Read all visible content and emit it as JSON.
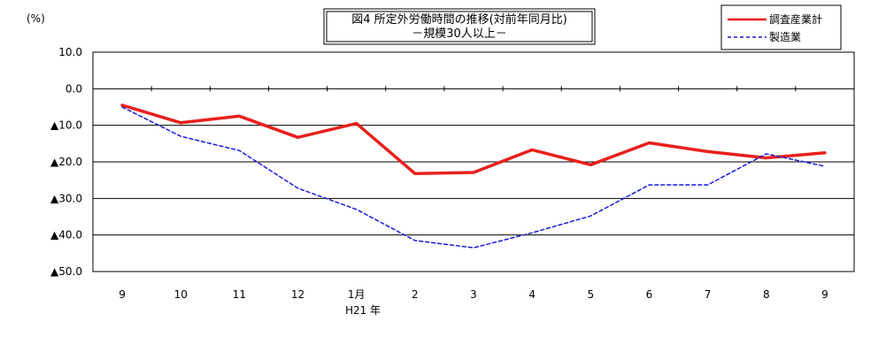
{
  "chart_data": {
    "type": "line",
    "title": "図4  所定外労働時間の推移(対前年同月比)",
    "subtitle": "－規模30人以上－",
    "ylabel": "(%)",
    "x_categories": [
      "9",
      "10",
      "11",
      "12",
      "1月",
      "2",
      "3",
      "4",
      "5",
      "6",
      "7",
      "8",
      "9"
    ],
    "year_note": "H21 年",
    "ylim": [
      -50,
      10
    ],
    "y_ticks": [
      {
        "value": 10,
        "label": "10.0"
      },
      {
        "value": 0,
        "label": "0.0"
      },
      {
        "value": -10,
        "label": "▲10.0"
      },
      {
        "value": -20,
        "label": "▲20.0"
      },
      {
        "value": -30,
        "label": "▲30.0"
      },
      {
        "value": -40,
        "label": "▲40.0"
      },
      {
        "value": -50,
        "label": "▲50.0"
      }
    ],
    "grid": true,
    "legend_position": "top-right",
    "series": [
      {
        "name": "調査産業計",
        "color": "#e8201c",
        "style": "solid",
        "values": [
          -4.5,
          -9.3,
          -7.5,
          -13.3,
          -9.5,
          -23.2,
          -22.9,
          -16.7,
          -20.8,
          -14.8,
          -17.2,
          -18.9,
          -17.5
        ]
      },
      {
        "name": "製造業",
        "color": "#1a1ad6",
        "style": "dashed",
        "values": [
          -5.0,
          -13.0,
          -16.9,
          -27.2,
          -33.0,
          -41.5,
          -43.5,
          -39.4,
          -34.8,
          -26.3,
          -26.3,
          -17.8,
          -21.2
        ]
      }
    ]
  }
}
